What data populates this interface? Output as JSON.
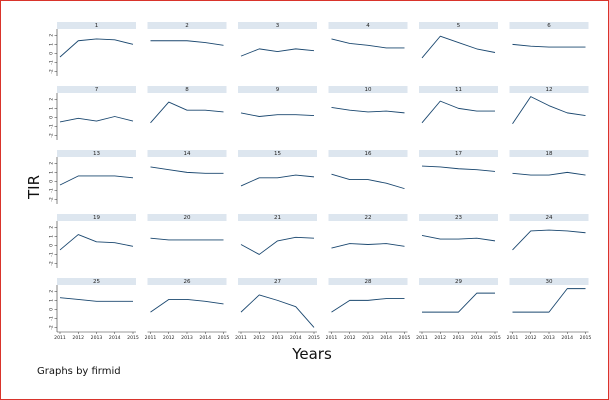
{
  "chart_data": {
    "type": "line",
    "layout": "small-multiples",
    "ylabel": "TIR",
    "xlabel": "Years",
    "note": "Graphs by firmid",
    "x": [
      2011,
      2012,
      2013,
      2014,
      2015
    ],
    "x_tick_labels": [
      "2011",
      "2012",
      "2013",
      "2014",
      "2015"
    ],
    "ylim": [
      -2.5,
      2.7
    ],
    "y_ticks": [
      -2,
      -1,
      0,
      1,
      2
    ],
    "y_tick_labels": [
      "-2",
      "-1",
      "0",
      "1",
      "2"
    ],
    "grid": false,
    "line_color": "#1a476f",
    "strip_color": "#dde6ef",
    "panels": [
      {
        "name": "1",
        "values": [
          -0.4,
          1.4,
          1.6,
          1.5,
          1.0
        ]
      },
      {
        "name": "2",
        "values": [
          1.4,
          1.4,
          1.4,
          1.2,
          0.9
        ]
      },
      {
        "name": "3",
        "values": [
          -0.3,
          0.5,
          0.2,
          0.5,
          0.3
        ]
      },
      {
        "name": "4",
        "values": [
          1.6,
          1.1,
          0.9,
          0.6,
          0.6
        ]
      },
      {
        "name": "5",
        "values": [
          -0.5,
          1.9,
          1.2,
          0.5,
          0.1
        ]
      },
      {
        "name": "6",
        "values": [
          1.0,
          0.8,
          0.7,
          0.7,
          0.7
        ]
      },
      {
        "name": "7",
        "values": [
          -0.5,
          -0.1,
          -0.4,
          0.1,
          -0.4
        ]
      },
      {
        "name": "8",
        "values": [
          -0.6,
          1.7,
          0.8,
          0.8,
          0.6
        ]
      },
      {
        "name": "9",
        "values": [
          0.5,
          0.1,
          0.3,
          0.3,
          0.2
        ]
      },
      {
        "name": "10",
        "values": [
          1.1,
          0.8,
          0.6,
          0.7,
          0.5
        ]
      },
      {
        "name": "11",
        "values": [
          -0.6,
          1.8,
          1.0,
          0.7,
          0.7
        ]
      },
      {
        "name": "12",
        "values": [
          -0.7,
          2.3,
          1.3,
          0.5,
          0.2
        ]
      },
      {
        "name": "13",
        "values": [
          -0.4,
          0.6,
          0.6,
          0.6,
          0.4
        ]
      },
      {
        "name": "14",
        "values": [
          1.6,
          1.3,
          1.0,
          0.9,
          0.9
        ]
      },
      {
        "name": "15",
        "values": [
          -0.5,
          0.4,
          0.4,
          0.7,
          0.5
        ]
      },
      {
        "name": "16",
        "values": [
          0.8,
          0.2,
          0.2,
          -0.2,
          -0.8
        ]
      },
      {
        "name": "17",
        "values": [
          1.7,
          1.6,
          1.4,
          1.3,
          1.1
        ]
      },
      {
        "name": "18",
        "values": [
          0.9,
          0.7,
          0.7,
          1.0,
          0.7
        ]
      },
      {
        "name": "19",
        "values": [
          -0.5,
          1.2,
          0.4,
          0.3,
          -0.1
        ]
      },
      {
        "name": "20",
        "values": [
          0.8,
          0.6,
          0.6,
          0.6,
          0.6
        ]
      },
      {
        "name": "21",
        "values": [
          0.1,
          -1.0,
          0.5,
          0.9,
          0.8
        ]
      },
      {
        "name": "22",
        "values": [
          -0.3,
          0.2,
          0.1,
          0.2,
          -0.1
        ]
      },
      {
        "name": "23",
        "values": [
          1.1,
          0.7,
          0.7,
          0.8,
          0.5
        ]
      },
      {
        "name": "24",
        "values": [
          -0.5,
          1.6,
          1.7,
          1.6,
          1.4
        ]
      },
      {
        "name": "25",
        "values": [
          1.3,
          1.1,
          0.9,
          0.9,
          0.9
        ]
      },
      {
        "name": "26",
        "values": [
          -0.3,
          1.1,
          1.1,
          0.9,
          0.6
        ]
      },
      {
        "name": "27",
        "values": [
          -0.3,
          1.6,
          1.0,
          0.3,
          -2.0
        ]
      },
      {
        "name": "28",
        "values": [
          -0.3,
          1.0,
          1.0,
          1.2,
          1.2
        ]
      },
      {
        "name": "29",
        "values": [
          -0.3,
          -0.3,
          -0.3,
          1.8,
          1.8
        ]
      },
      {
        "name": "30",
        "values": [
          -0.3,
          -0.3,
          -0.3,
          2.3,
          2.3
        ]
      }
    ]
  }
}
